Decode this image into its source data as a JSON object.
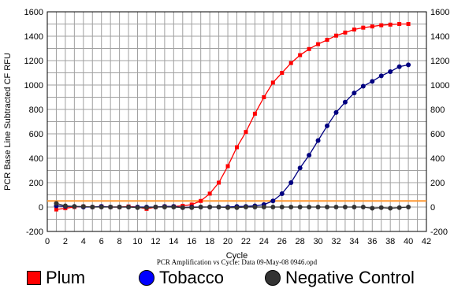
{
  "chart_data": {
    "type": "scatter",
    "title": "",
    "xlabel": "Cycle",
    "ylabel": "PCR Base Line Subtracted CF RFU",
    "caption": "PCR Amplification vs Cycle: Data 09-May-08 0946.opd",
    "xlim": [
      0,
      42
    ],
    "ylim": [
      -200,
      1600
    ],
    "x_ticks": [
      0,
      2,
      4,
      6,
      8,
      10,
      12,
      14,
      16,
      18,
      20,
      22,
      24,
      26,
      28,
      30,
      32,
      34,
      36,
      38,
      40,
      42
    ],
    "y_ticks": [
      -200,
      0,
      200,
      400,
      600,
      800,
      1000,
      1200,
      1400,
      1600
    ],
    "grid": true,
    "threshold": {
      "value": 50,
      "color": "#ff9933"
    },
    "series": [
      {
        "name": "Plum",
        "marker": "square",
        "color": "#ff0000",
        "x": [
          1,
          2,
          3,
          4,
          5,
          6,
          7,
          8,
          9,
          10,
          11,
          12,
          13,
          14,
          15,
          16,
          17,
          18,
          19,
          20,
          21,
          22,
          23,
          24,
          25,
          26,
          27,
          28,
          29,
          30,
          31,
          32,
          33,
          34,
          35,
          36,
          37,
          38,
          39,
          40
        ],
        "y": [
          -20,
          -10,
          0,
          5,
          0,
          5,
          0,
          0,
          5,
          0,
          -15,
          0,
          5,
          5,
          10,
          20,
          50,
          110,
          200,
          335,
          490,
          615,
          765,
          900,
          1020,
          1100,
          1180,
          1245,
          1295,
          1335,
          1370,
          1405,
          1430,
          1455,
          1470,
          1480,
          1490,
          1495,
          1500,
          1500
        ]
      },
      {
        "name": "Tobacco",
        "marker": "circle",
        "color": "#000080",
        "x": [
          1,
          2,
          3,
          4,
          5,
          6,
          7,
          8,
          9,
          10,
          11,
          12,
          13,
          14,
          15,
          16,
          17,
          18,
          19,
          20,
          21,
          22,
          23,
          24,
          25,
          26,
          27,
          28,
          29,
          30,
          31,
          32,
          33,
          34,
          35,
          36,
          37,
          38,
          39,
          40
        ],
        "y": [
          10,
          5,
          5,
          0,
          0,
          5,
          0,
          0,
          0,
          0,
          0,
          0,
          5,
          5,
          -5,
          0,
          0,
          0,
          0,
          0,
          5,
          5,
          10,
          20,
          50,
          110,
          200,
          320,
          425,
          545,
          665,
          775,
          860,
          935,
          990,
          1030,
          1075,
          1110,
          1150,
          1165
        ]
      },
      {
        "name": "Negative Control",
        "marker": "circle",
        "color": "#333333",
        "x": [
          1,
          2,
          3,
          4,
          5,
          6,
          7,
          8,
          9,
          10,
          11,
          12,
          13,
          14,
          15,
          16,
          17,
          18,
          19,
          20,
          21,
          22,
          23,
          24,
          25,
          26,
          27,
          28,
          29,
          30,
          31,
          32,
          33,
          34,
          35,
          36,
          37,
          38,
          39,
          40
        ],
        "y": [
          30,
          10,
          5,
          5,
          0,
          0,
          0,
          0,
          0,
          -5,
          -5,
          0,
          0,
          0,
          -5,
          -5,
          0,
          0,
          0,
          -5,
          -5,
          0,
          0,
          0,
          0,
          0,
          0,
          0,
          0,
          0,
          0,
          0,
          0,
          0,
          0,
          -10,
          -5,
          -10,
          -5,
          0
        ]
      }
    ]
  },
  "legend": {
    "items": [
      {
        "label": "Plum",
        "color": "#ff0000"
      },
      {
        "label": "Tobacco",
        "color": "#0000ff"
      },
      {
        "label": "Negative Control",
        "color": "#333333"
      }
    ]
  }
}
